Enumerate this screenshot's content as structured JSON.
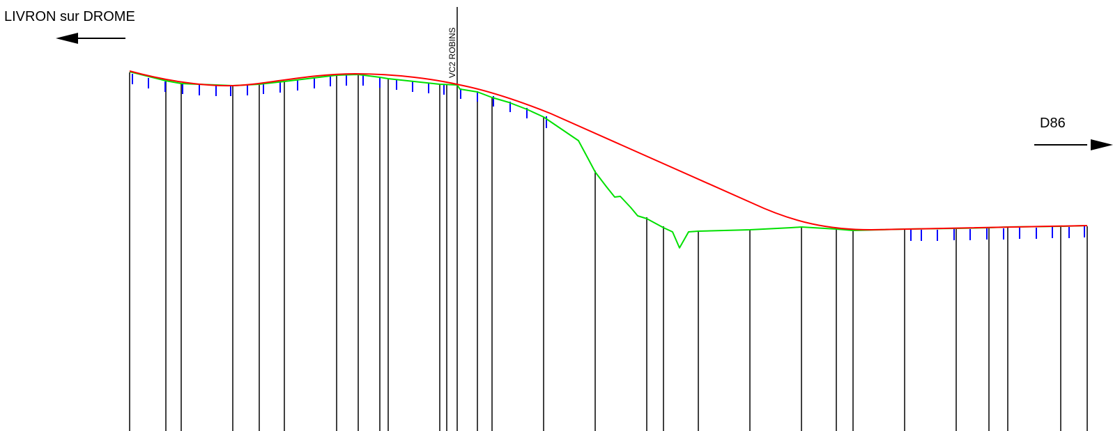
{
  "labels": {
    "left_direction": "LIVRON sur DROME",
    "right_direction": "D86",
    "crossing": "VC2 ROBINS"
  },
  "colors": {
    "project_line": "#ff0000",
    "terrain_line": "#00e000",
    "slope_ticks": "#0000ff",
    "grid_lines": "#000000"
  }
}
